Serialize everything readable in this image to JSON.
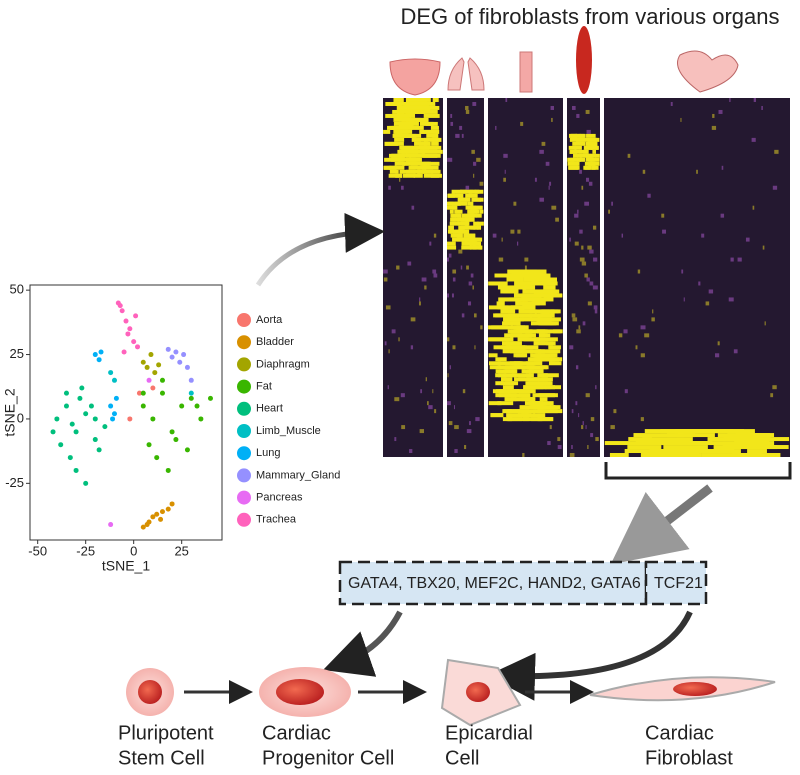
{
  "heatmap": {
    "title": "DEG of fibroblasts from various organs"
  },
  "chart_data": {
    "type": "scatter",
    "x_label": "tSNE_1",
    "y_label": "tSNE_2",
    "xlim": [
      -54,
      46
    ],
    "ylim": [
      -47,
      52
    ],
    "xticks": [
      -50,
      -25,
      0,
      25
    ],
    "yticks": [
      -25,
      0,
      25,
      50
    ],
    "series": [
      {
        "name": "Aorta",
        "color": "#F8766D",
        "x": [
          3,
          10,
          -2
        ],
        "y": [
          10,
          12,
          0
        ]
      },
      {
        "name": "Bladder",
        "color": "#D89000",
        "x": [
          5,
          8,
          10,
          12,
          15,
          18,
          20,
          7,
          14
        ],
        "y": [
          -42,
          -40,
          -38,
          -37,
          -36,
          -35,
          -33,
          -41,
          -39
        ]
      },
      {
        "name": "Diaphragm",
        "color": "#A3A500",
        "x": [
          5,
          7,
          9,
          11,
          13
        ],
        "y": [
          22,
          20,
          25,
          18,
          21
        ]
      },
      {
        "name": "Fat",
        "color": "#39B600",
        "x": [
          5,
          10,
          15,
          20,
          25,
          30,
          35,
          8,
          12,
          18,
          22,
          28,
          33,
          40,
          5,
          15
        ],
        "y": [
          5,
          0,
          10,
          -5,
          5,
          8,
          0,
          -10,
          -15,
          -20,
          -8,
          -12,
          5,
          8,
          10,
          15
        ]
      },
      {
        "name": "Heart",
        "color": "#00BF7D",
        "x": [
          -40,
          -35,
          -30,
          -25,
          -20,
          -38,
          -33,
          -28,
          -22,
          -18,
          -30,
          -25,
          -35,
          -42,
          -27,
          -20,
          -15,
          -32
        ],
        "y": [
          0,
          5,
          -5,
          2,
          -8,
          -10,
          -15,
          8,
          5,
          -12,
          -20,
          -25,
          10,
          -5,
          12,
          0,
          -3,
          -2
        ]
      },
      {
        "name": "Limb_Muscle",
        "color": "#00BFC4",
        "x": [
          -12,
          -10,
          30
        ],
        "y": [
          18,
          15,
          10
        ]
      },
      {
        "name": "Lung",
        "color": "#00B0F6",
        "x": [
          -20,
          -18,
          -17,
          -12,
          -10,
          -11,
          -9
        ],
        "y": [
          25,
          23,
          26,
          5,
          2,
          0,
          8
        ]
      },
      {
        "name": "Mammary_Gland",
        "color": "#9590FF",
        "x": [
          18,
          20,
          22,
          24,
          26,
          28,
          30
        ],
        "y": [
          27,
          24,
          26,
          22,
          25,
          20,
          15
        ]
      },
      {
        "name": "Pancreas",
        "color": "#E76BF3",
        "x": [
          -12,
          8
        ],
        "y": [
          -41,
          15
        ]
      },
      {
        "name": "Trachea",
        "color": "#FF62BC",
        "x": [
          -8,
          -6,
          -4,
          -2,
          0,
          2,
          -5,
          -3,
          1,
          -7
        ],
        "y": [
          45,
          42,
          38,
          35,
          30,
          28,
          26,
          33,
          40,
          44
        ]
      }
    ]
  },
  "genes": {
    "group": "GATA4,  TBX20,  MEF2C, HAND2, GATA6",
    "single": "TCF21"
  },
  "cells": [
    {
      "lines": [
        "Pluripotent",
        "Stem Cell"
      ]
    },
    {
      "lines": [
        "Cardiac",
        "Progenitor Cell"
      ]
    },
    {
      "lines": [
        "Epicardial",
        "Cell"
      ]
    },
    {
      "lines": [
        "Cardiac",
        "Fibroblast"
      ]
    }
  ]
}
